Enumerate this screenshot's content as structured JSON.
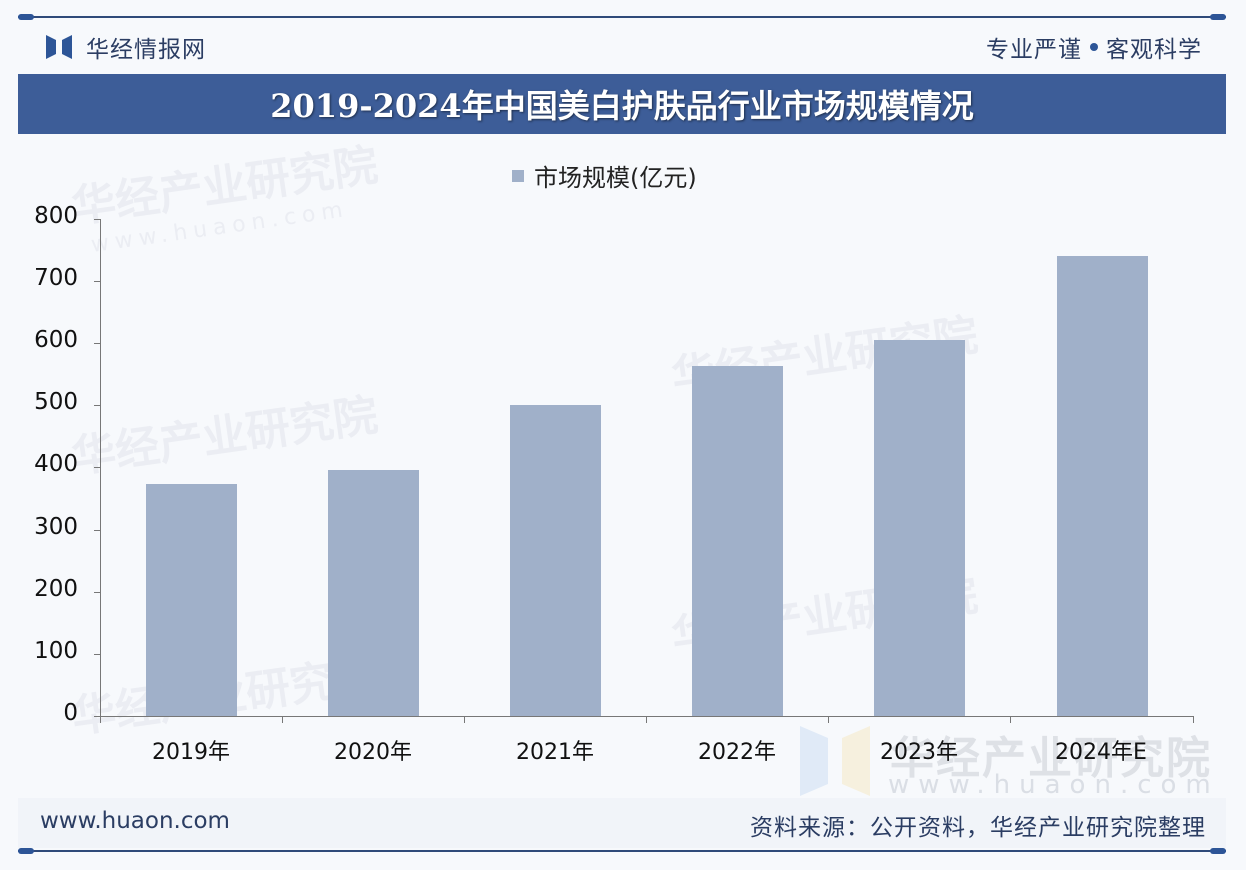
{
  "header": {
    "brand_name": "华经情报网",
    "slogan_left": "专业严谨",
    "slogan_right": "客观科学"
  },
  "title": "2019-2024年中国美白护肤品行业市场规模情况",
  "legend": {
    "label": "市场规模(亿元)",
    "color": "#a0b0c9"
  },
  "watermark": {
    "text": "华经产业研究院",
    "url": "www.huaon.com"
  },
  "footer": {
    "url": "www.huaon.com",
    "source": "资料来源：公开资料，华经产业研究院整理"
  },
  "colors": {
    "title_bar": "#3d5d98",
    "bar": "#a0b0c9",
    "brand_text": "#2b3d63"
  },
  "axis": {
    "y_ticks": [
      "0",
      "100",
      "200",
      "300",
      "400",
      "500",
      "600",
      "700",
      "800"
    ],
    "x_labels": [
      "2019年",
      "2020年",
      "2021年",
      "2022年",
      "2023年",
      "2024年E"
    ]
  },
  "chart_data": {
    "type": "bar",
    "title": "2019-2024年中国美白护肤品行业市场规模情况",
    "categories": [
      "2019年",
      "2020年",
      "2021年",
      "2022年",
      "2023年",
      "2024年E"
    ],
    "series": [
      {
        "name": "市场规模(亿元)",
        "values": [
          373,
          396,
          501,
          563,
          605,
          740
        ]
      }
    ],
    "xlabel": "",
    "ylabel": "",
    "ylim": [
      0,
      800
    ],
    "yticks": [
      0,
      100,
      200,
      300,
      400,
      500,
      600,
      700,
      800
    ],
    "grid": false,
    "legend_position": "top"
  }
}
